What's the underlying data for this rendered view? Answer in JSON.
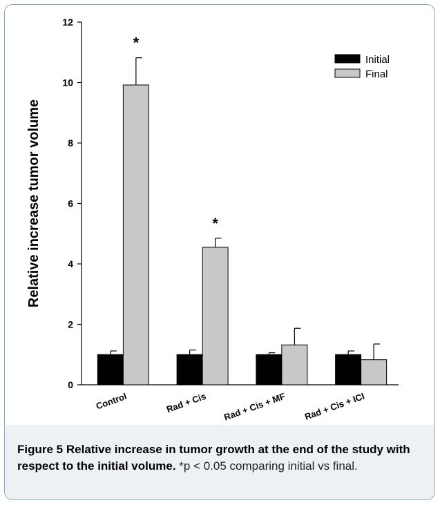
{
  "chart_data": {
    "type": "bar",
    "categories": [
      "Control",
      "Rad + Cis",
      "Rad + Cis + MF",
      "Rad + Cis + ICI"
    ],
    "series": [
      {
        "name": "Initial",
        "color": "#000000",
        "values": [
          1.0,
          1.0,
          1.0,
          1.0
        ],
        "errors": [
          0.12,
          0.15,
          0.06,
          0.12
        ]
      },
      {
        "name": "Final",
        "color": "#c8c8c8",
        "values": [
          9.92,
          4.55,
          1.32,
          0.83
        ],
        "errors": [
          0.9,
          0.3,
          0.55,
          0.52
        ]
      }
    ],
    "ylabel": "Relative increase tumor volume",
    "xlabel": "",
    "ylim": [
      0,
      12
    ],
    "yticks": [
      "0",
      "2",
      "4",
      "6",
      "8",
      "10",
      "12"
    ],
    "annotations": [
      {
        "category": "Control",
        "series": "Final",
        "text": "*"
      },
      {
        "category": "Rad + Cis",
        "series": "Final",
        "text": "*"
      }
    ],
    "legend_position": "top-right",
    "grid": false
  },
  "caption": {
    "label": "Figure 5",
    "title": "Relative increase in tumor growth at the end of the study with respect to the initial volume.",
    "note": "*p < 0.05 comparing initial vs final."
  }
}
